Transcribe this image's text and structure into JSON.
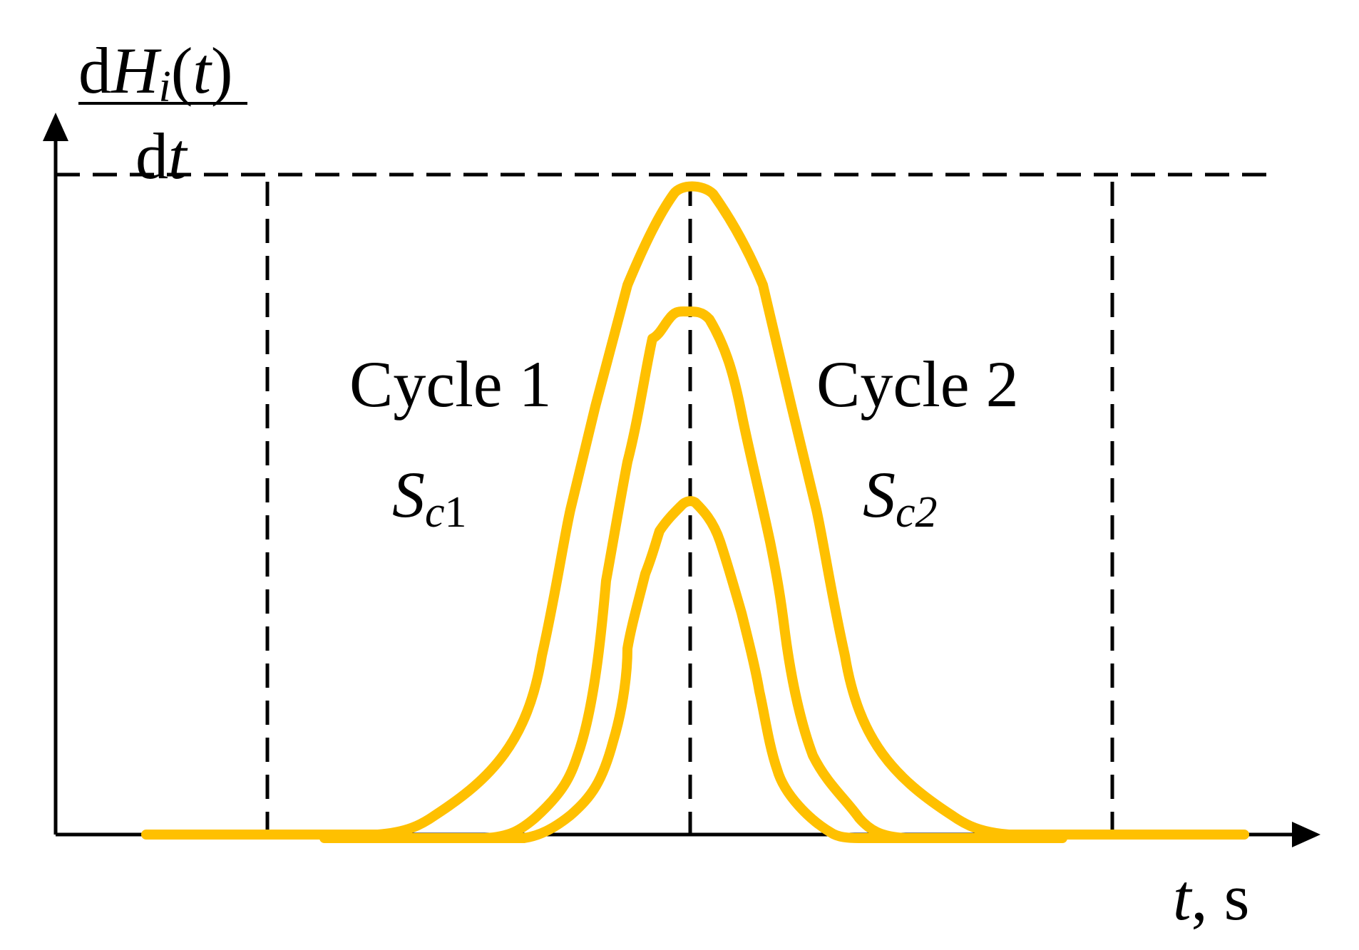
{
  "colors": {
    "curve": "#FFC000",
    "axis": "#000000",
    "guide": "#000000",
    "background": "#FFFFFF"
  },
  "y_axis_label": {
    "numerator_d": "d",
    "numerator_H": "H",
    "numerator_i": "i",
    "numerator_paren_open": "(",
    "numerator_t": "t",
    "numerator_paren_close": ")",
    "denominator_d": "d",
    "denominator_t": "t"
  },
  "x_axis_label": {
    "var": "t",
    "unit": ", s"
  },
  "regions": [
    {
      "title": "Cycle 1",
      "symbol": "S",
      "sub_c": "c",
      "sub_n": "1"
    },
    {
      "title": "Cycle 2",
      "symbol": "S",
      "sub_c": "c",
      "sub_n": "2"
    }
  ],
  "curves": [
    {
      "name": "large",
      "peak_level": 0.95
    },
    {
      "name": "medium",
      "peak_level": 0.75
    },
    {
      "name": "small",
      "peak_level": 0.49
    }
  ]
}
